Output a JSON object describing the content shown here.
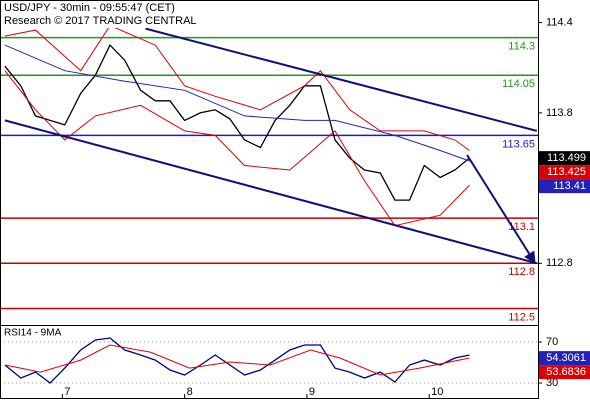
{
  "header": {
    "title": "USD/JPY - 30min - 09:55:47 (CET)",
    "subtitle": "Research © 2017 TRADING CENTRAL"
  },
  "chart_data": [
    {
      "type": "line",
      "xlim": [
        6.49,
        10.89
      ],
      "ylim": [
        112.39,
        114.55
      ],
      "yticks": [
        114.4,
        113.8,
        112.8
      ],
      "series": [
        {
          "color": "#000000",
          "x": [
            6.53,
            6.66,
            6.78,
            6.9,
            7.02,
            7.15,
            7.27,
            7.39,
            7.51,
            7.64,
            7.76,
            7.88,
            8.0,
            8.13,
            8.25,
            8.37,
            8.49,
            8.62,
            8.74,
            8.86,
            8.98,
            9.11,
            9.23,
            9.35,
            9.47,
            9.6,
            9.72,
            9.84,
            9.96,
            10.09,
            10.21,
            10.33
          ],
          "values": [
            114.11,
            113.98,
            113.78,
            113.75,
            113.72,
            113.93,
            114.05,
            114.25,
            114.15,
            113.95,
            113.88,
            113.88,
            113.75,
            113.8,
            113.82,
            113.76,
            113.62,
            113.57,
            113.75,
            113.85,
            113.98,
            113.98,
            113.62,
            113.5,
            113.42,
            113.4,
            113.22,
            113.22,
            113.45,
            113.37,
            113.42,
            113.5
          ]
        },
        {
          "color": "#2222bb",
          "x": [
            6.53,
            7.02,
            7.51,
            8.0,
            8.49,
            8.98,
            9.23,
            9.72,
            10.09,
            10.33
          ],
          "values": [
            114.25,
            114.08,
            114.01,
            113.95,
            113.78,
            113.75,
            113.75,
            113.65,
            113.55,
            113.48
          ]
        },
        {
          "color": "#dd0000",
          "x": [
            6.53,
            6.78,
            7.15,
            7.39,
            7.76,
            8.0,
            8.25,
            8.62,
            8.98,
            9.11,
            9.35,
            9.6,
            9.96,
            10.21,
            10.33
          ],
          "values": [
            114.31,
            114.35,
            114.08,
            114.38,
            114.25,
            113.98,
            113.91,
            113.82,
            113.98,
            114.08,
            113.82,
            113.68,
            113.68,
            113.62,
            113.55
          ]
        },
        {
          "color": "#dd0000",
          "x": [
            6.53,
            6.78,
            7.02,
            7.27,
            7.64,
            8.0,
            8.25,
            8.49,
            8.86,
            9.23,
            9.47,
            9.72,
            10.09,
            10.33
          ],
          "values": [
            114.08,
            113.82,
            113.62,
            113.78,
            113.85,
            113.68,
            113.65,
            113.45,
            113.42,
            113.68,
            113.35,
            113.05,
            113.12,
            113.32
          ]
        }
      ],
      "levels": [
        {
          "value": 114.3,
          "color": "#1e9a1e"
        },
        {
          "value": 114.05,
          "color": "#1e9a1e"
        },
        {
          "value": 113.65,
          "color": "#1a1acc"
        },
        {
          "value": 113.1,
          "color": "#cc0000"
        },
        {
          "value": 112.8,
          "color": "#cc0000"
        },
        {
          "value": 112.5,
          "color": "#cc0000"
        }
      ],
      "trend_lines": [
        {
          "color": "#10107a",
          "x": [
            7.68,
            10.88
          ],
          "values": [
            114.36,
            113.68
          ]
        },
        {
          "color": "#10107a",
          "x": [
            6.53,
            10.88
          ],
          "values": [
            113.75,
            112.8
          ]
        }
      ],
      "arrow": {
        "color": "#10107a",
        "x": [
          10.31,
          10.86
        ],
        "values": [
          113.52,
          112.81
        ]
      },
      "price_tags": [
        {
          "value": 113.499,
          "color": "#000000"
        },
        {
          "value": 113.425,
          "color": "#dd0000"
        },
        {
          "value": 113.41,
          "color": "#2222bb"
        }
      ]
    },
    {
      "type": "line",
      "title": "RSI14 - 9MA",
      "xlim": [
        6.49,
        10.89
      ],
      "xticks": [
        7,
        8,
        9,
        10
      ],
      "ylim": [
        15.4,
        86.6
      ],
      "yticks": [
        70,
        30
      ],
      "grid": true,
      "series": [
        {
          "color": "#000080",
          "x": [
            6.53,
            6.66,
            6.78,
            6.9,
            7.02,
            7.15,
            7.27,
            7.39,
            7.51,
            7.64,
            7.76,
            7.88,
            8.0,
            8.13,
            8.25,
            8.37,
            8.49,
            8.62,
            8.74,
            8.86,
            8.98,
            9.11,
            9.23,
            9.35,
            9.47,
            9.6,
            9.72,
            9.84,
            9.96,
            10.09,
            10.21,
            10.33
          ],
          "values": [
            47.6,
            34.9,
            40.7,
            30,
            44.6,
            62.2,
            72,
            73.9,
            62.2,
            57.3,
            52.4,
            42.7,
            37.8,
            47.6,
            57.3,
            47.6,
            37.8,
            42.7,
            52.4,
            62.2,
            67.1,
            67.1,
            44.6,
            40.7,
            34.9,
            40.7,
            31,
            47.6,
            52.4,
            47.6,
            54.4,
            57.3
          ]
        },
        {
          "color": "#dd0000",
          "x": [
            6.53,
            6.82,
            7.15,
            7.39,
            7.72,
            8.04,
            8.37,
            8.7,
            9.03,
            9.27,
            9.6,
            9.92,
            10.33
          ],
          "values": [
            47.6,
            40.7,
            52.4,
            67.1,
            60.2,
            44.6,
            50.5,
            47.6,
            62.2,
            54.4,
            37.8,
            44.6,
            54.4
          ]
        }
      ],
      "price_tags": [
        {
          "value": 54.3061,
          "color": "#2222bb"
        },
        {
          "value": 53.6836,
          "color": "#dd0000"
        }
      ]
    }
  ]
}
